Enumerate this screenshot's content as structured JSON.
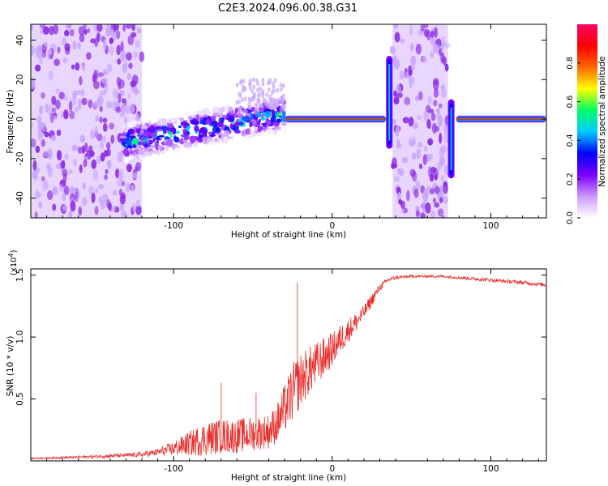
{
  "figure_title": "C2E3.2024.096.00.38.G31",
  "chart_data": [
    {
      "type": "heatmap",
      "title": "C2E3.2024.096.00.38.G31",
      "xlabel": "Height of straight line (km)",
      "ylabel": "Frequency (Hz)",
      "xlim": [
        -190,
        135
      ],
      "ylim": [
        -50,
        48
      ],
      "x_ticks": [
        -100,
        0,
        100
      ],
      "x_tick_labels": [
        "-100",
        "0",
        "100"
      ],
      "y_ticks": [
        -40,
        -20,
        0,
        20,
        40
      ],
      "y_tick_labels": [
        "-40",
        "-20",
        "0",
        "20",
        "40"
      ],
      "colorbar": {
        "label": "Normalized spectral amplitude",
        "range": [
          0,
          1
        ],
        "ticks": [
          0.0,
          0.2,
          0.4,
          0.6,
          0.8
        ],
        "tick_labels": [
          "0.0",
          "0.2",
          "0.4",
          "0.6",
          "0.8"
        ],
        "colormap": [
          "#ffffff",
          "#cc99ff",
          "#7a00ff",
          "#0000ff",
          "#00ccff",
          "#00ff66",
          "#ffff00",
          "#ff6600",
          "#ff0000",
          "#ff0066"
        ]
      },
      "features": [
        {
          "kind": "noise_band",
          "x_range": [
            -190,
            -120
          ],
          "f_range": [
            -50,
            48
          ],
          "amplitude": 0.2
        },
        {
          "kind": "noise_band",
          "x_range": [
            38,
            73
          ],
          "f_range": [
            -50,
            48
          ],
          "amplitude": 0.2
        },
        {
          "kind": "drifting_tone",
          "x_range": [
            -132,
            -30
          ],
          "f_start": -12,
          "f_end": 3,
          "amplitude": 0.35
        },
        {
          "kind": "stable_tone",
          "x_range": [
            -30,
            34
          ],
          "f_center": 0,
          "amplitude": 0.9
        },
        {
          "kind": "stable_tone",
          "x_range": [
            78,
            135
          ],
          "f_center": 0,
          "amplitude": 0.9
        },
        {
          "kind": "spike",
          "x": 36,
          "f_range": [
            -15,
            32
          ],
          "amplitude": 0.3
        },
        {
          "kind": "spike",
          "x": 75,
          "f_range": [
            -30,
            10
          ],
          "amplitude": 0.3
        }
      ],
      "grid": false
    },
    {
      "type": "line",
      "xlabel": "Height of straight line (km)",
      "ylabel": "SNR (10 * v/v)",
      "y_multiplier_label": "(x10",
      "y_multiplier_exp": "4",
      "y_multiplier_close": ")",
      "xlim": [
        -190,
        135
      ],
      "ylim": [
        0,
        1.55
      ],
      "x_ticks": [
        -100,
        0,
        100
      ],
      "x_tick_labels": [
        "-100",
        "0",
        "100"
      ],
      "y_ticks": [
        0.5,
        1.0,
        1.5
      ],
      "y_tick_labels": [
        "0.5",
        "1.0",
        "1.5"
      ],
      "series": [
        {
          "color": "#e8302e",
          "x": [
            -190,
            -160,
            -140,
            -120,
            -110,
            -100,
            -90,
            -80,
            -70,
            -60,
            -50,
            -40,
            -35,
            -30,
            -25,
            -20,
            -15,
            -10,
            -5,
            0,
            5,
            10,
            15,
            20,
            25,
            30,
            35,
            40,
            50,
            60,
            70,
            80,
            90,
            100,
            110,
            120,
            135
          ],
          "y": [
            0.02,
            0.03,
            0.04,
            0.05,
            0.07,
            0.1,
            0.14,
            0.18,
            0.2,
            0.2,
            0.22,
            0.24,
            0.3,
            0.42,
            0.55,
            0.65,
            0.72,
            0.78,
            0.84,
            0.9,
            0.98,
            1.05,
            1.12,
            1.2,
            1.3,
            1.4,
            1.46,
            1.48,
            1.49,
            1.49,
            1.49,
            1.48,
            1.47,
            1.46,
            1.45,
            1.44,
            1.42
          ],
          "noise": [
            0.005,
            0.01,
            0.015,
            0.02,
            0.03,
            0.06,
            0.1,
            0.14,
            0.14,
            0.14,
            0.14,
            0.14,
            0.16,
            0.2,
            0.24,
            0.22,
            0.2,
            0.18,
            0.16,
            0.14,
            0.12,
            0.1,
            0.08,
            0.06,
            0.05,
            0.03,
            0.02,
            0.015,
            0.01,
            0.01,
            0.01,
            0.012,
            0.014,
            0.015,
            0.015,
            0.016,
            0.015
          ],
          "peaks": [
            {
              "x": -22,
              "y": 1.44
            },
            {
              "x": -48,
              "y": 0.55
            },
            {
              "x": -70,
              "y": 0.63
            }
          ]
        }
      ],
      "grid": false
    }
  ]
}
